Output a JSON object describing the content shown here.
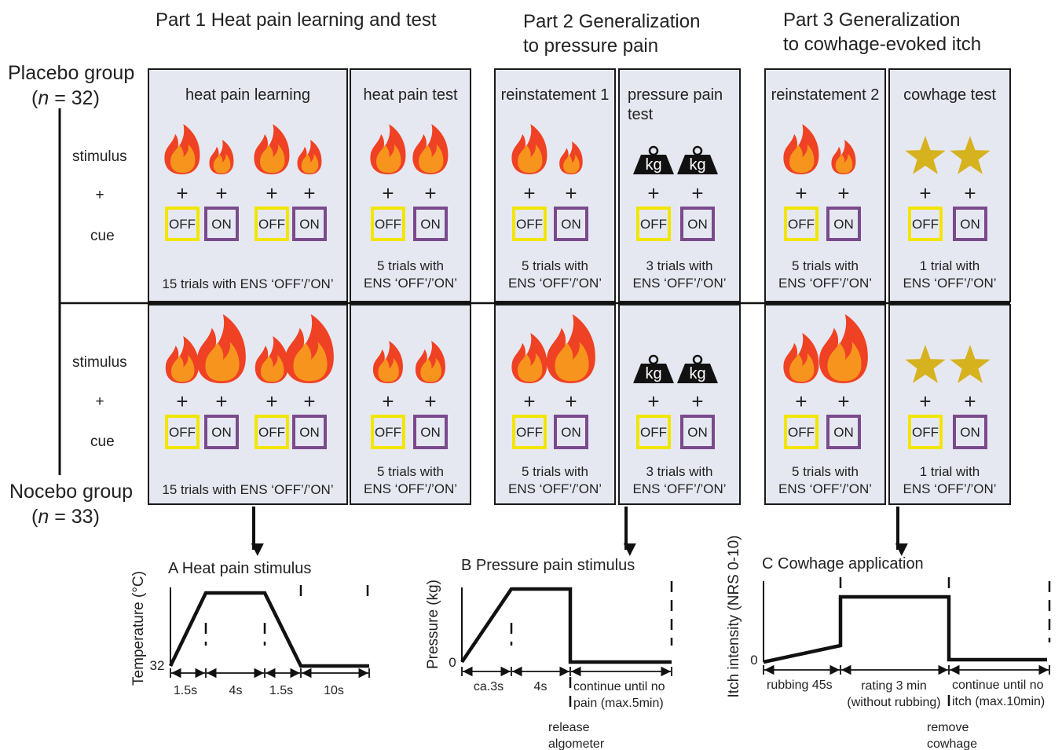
{
  "parts": [
    {
      "title": [
        "Part 1 Heat pain learning and test"
      ]
    },
    {
      "title": [
        "Part 2 Generalization",
        "to pressure pain"
      ]
    },
    {
      "title": [
        "Part 3 Generalization",
        "to cowhage-evoked itch"
      ]
    }
  ],
  "groups": [
    {
      "name": "Placebo group",
      "size": {
        "open": "(",
        "symbol": "n",
        "rest": "= 32)"
      }
    },
    {
      "name": "Nocebo group",
      "size": {
        "open": "(",
        "symbol": "n",
        "rest": "= 33)"
      }
    }
  ],
  "row_labels": {
    "stimulus": "stimulus",
    "plus": "+",
    "cue": "cue"
  },
  "cue_labels": [
    "OFF",
    "ON"
  ],
  "weight_label": "kg",
  "panels": [
    {
      "title": [
        "heat pain learning"
      ],
      "notes": {
        "placebo": [
          "15 trials with ENS ‘OFF’/’ON’"
        ],
        "nocebo": [
          "15 trials with ENS ‘OFF’/’ON’"
        ]
      }
    },
    {
      "title": [
        "heat pain test"
      ],
      "notes": {
        "placebo": [
          "5 trials with",
          "ENS ‘OFF’/’ON’"
        ],
        "nocebo": [
          "5 trials with",
          "ENS ‘OFF’/’ON’"
        ]
      }
    },
    {
      "title": [
        "reinstatement 1"
      ],
      "notes": {
        "placebo": [
          "5 trials with",
          "ENS ‘OFF’/’ON’"
        ],
        "nocebo": [
          "5 trials with",
          "ENS ‘OFF’/’ON’"
        ]
      }
    },
    {
      "title": [
        "pressure pain",
        "test"
      ],
      "notes": {
        "placebo": [
          "3 trials with",
          "ENS ‘OFF’/’ON’"
        ],
        "nocebo": [
          "3 trials with",
          "ENS ‘OFF’/’ON’"
        ]
      }
    },
    {
      "title": [
        "reinstatement 2"
      ],
      "notes": {
        "placebo": [
          "5 trials with",
          "ENS ‘OFF’/’ON’"
        ],
        "nocebo": [
          "5 trials with",
          "ENS ‘OFF’/’ON’"
        ]
      }
    },
    {
      "title": [
        "cowhage test"
      ],
      "notes": {
        "placebo": [
          "1 trial with",
          "ENS ‘OFF’/’ON’"
        ],
        "nocebo": [
          "1 trial with",
          "ENS ‘OFF’/’ON’"
        ]
      }
    }
  ],
  "graphs": [
    {
      "title": "A Heat pain stimulus",
      "y_label": "Temperature (°C)",
      "baseline_label": "32",
      "intervals": [
        [
          "1.5s"
        ],
        [
          "4s"
        ],
        [
          "1.5s"
        ],
        [
          "10s"
        ]
      ]
    },
    {
      "title": "B Pressure pain stimulus",
      "y_label": "Pressure (kg)",
      "baseline_label": "0",
      "intervals": [
        [
          "ca.3s"
        ],
        [
          "4s"
        ],
        [
          "continue until no",
          "pain (max.5min)"
        ]
      ],
      "annotation": [
        "release",
        "algometer"
      ]
    },
    {
      "title": "C Cowhage application",
      "y_label": "Itch intensity (NRS 0-10)",
      "baseline_label": "0",
      "intervals": [
        [
          "rubbing 45s"
        ],
        [
          "rating 3 min",
          "(without rubbing)"
        ],
        [
          "continue until no",
          "itch (max.10min)"
        ]
      ],
      "annotation": [
        "remove",
        "cowhage"
      ]
    }
  ]
}
